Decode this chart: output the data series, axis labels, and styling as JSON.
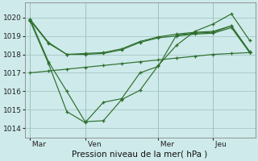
{
  "bg_color": "#ceeaea",
  "grid_color": "#9fbfbf",
  "line_color": "#2d6e2d",
  "xlabel": "Pression niveau de la mer( hPa )",
  "ylim": [
    1013.5,
    1020.8
  ],
  "yticks": [
    1014,
    1015,
    1016,
    1017,
    1018,
    1019,
    1020
  ],
  "xtick_labels": [
    " Mar",
    " Ven",
    " Mer",
    " Jeu"
  ],
  "xtick_positions": [
    0,
    3,
    7,
    10
  ],
  "num_points": 13,
  "line_flat_x": [
    0,
    1,
    2,
    3,
    4,
    5,
    6,
    7,
    8,
    9,
    10,
    11,
    12
  ],
  "line_flat_y": [
    1017.0,
    1017.1,
    1017.2,
    1017.3,
    1017.4,
    1017.5,
    1017.6,
    1017.7,
    1017.8,
    1017.9,
    1018.0,
    1018.05,
    1018.1
  ],
  "line_upper1_x": [
    0,
    1,
    2,
    3,
    4,
    5,
    6,
    7,
    8,
    9,
    10,
    11,
    12
  ],
  "line_upper1_y": [
    1019.9,
    1018.65,
    1018.0,
    1018.05,
    1018.1,
    1018.3,
    1018.7,
    1018.95,
    1019.1,
    1019.2,
    1019.25,
    1019.55,
    1018.15
  ],
  "line_upper2_x": [
    0,
    1,
    2,
    3,
    4,
    5,
    6,
    7,
    8,
    9,
    10,
    11,
    12
  ],
  "line_upper2_y": [
    1019.85,
    1018.6,
    1018.0,
    1018.0,
    1018.05,
    1018.25,
    1018.65,
    1018.9,
    1019.0,
    1019.1,
    1019.15,
    1019.45,
    1018.1
  ],
  "line_v1_x": [
    0,
    1,
    2,
    3,
    4,
    5,
    6,
    7,
    8,
    9,
    10,
    11,
    12
  ],
  "line_v1_y": [
    1019.9,
    1017.6,
    1016.0,
    1014.35,
    1014.4,
    1015.55,
    1016.05,
    1017.4,
    1018.5,
    1019.25,
    1019.65,
    1020.2,
    1018.75
  ],
  "line_v2_x": [
    0,
    1,
    2,
    3,
    4,
    5,
    6,
    7,
    8,
    9,
    10,
    11,
    12
  ],
  "line_v2_y": [
    1019.8,
    1017.5,
    1014.9,
    1014.3,
    1015.4,
    1015.6,
    1017.0,
    1017.35,
    1019.05,
    1019.15,
    1019.2,
    1019.55,
    1018.1
  ]
}
